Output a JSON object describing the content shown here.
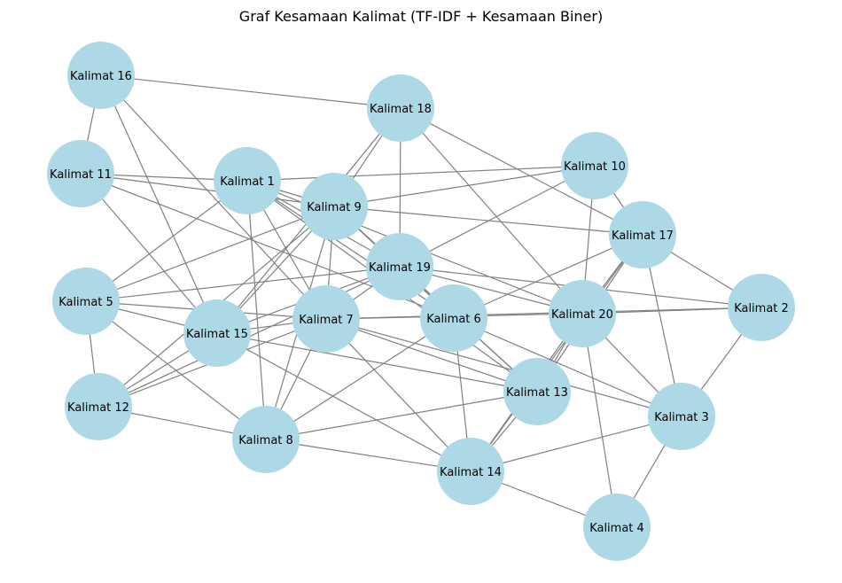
{
  "title": "Graf Kesamaan Kalimat (TF-IDF + Kesamaan Biner)",
  "colors": {
    "node": "#add8e6",
    "edge": "#808080",
    "text": "#000000",
    "background": "#ffffff"
  },
  "nodes": [
    {
      "id": "k1",
      "label": "Kalimat 1"
    },
    {
      "id": "k2",
      "label": "Kalimat 2"
    },
    {
      "id": "k3",
      "label": "Kalimat 3"
    },
    {
      "id": "k4",
      "label": "Kalimat 4"
    },
    {
      "id": "k5",
      "label": "Kalimat 5"
    },
    {
      "id": "k6",
      "label": "Kalimat 6"
    },
    {
      "id": "k7",
      "label": "Kalimat 7"
    },
    {
      "id": "k8",
      "label": "Kalimat 8"
    },
    {
      "id": "k9",
      "label": "Kalimat 9"
    },
    {
      "id": "k10",
      "label": "Kalimat 10"
    },
    {
      "id": "k11",
      "label": "Kalimat 11"
    },
    {
      "id": "k12",
      "label": "Kalimat 12"
    },
    {
      "id": "k13",
      "label": "Kalimat 13"
    },
    {
      "id": "k14",
      "label": "Kalimat 14"
    },
    {
      "id": "k15",
      "label": "Kalimat 15"
    },
    {
      "id": "k16",
      "label": "Kalimat 16"
    },
    {
      "id": "k17",
      "label": "Kalimat 17"
    },
    {
      "id": "k18",
      "label": "Kalimat 18"
    },
    {
      "id": "k19",
      "label": "Kalimat 19"
    },
    {
      "id": "k20",
      "label": "Kalimat 20"
    }
  ],
  "edges": [
    [
      "k16",
      "k18"
    ],
    [
      "k16",
      "k11"
    ],
    [
      "k16",
      "k15"
    ],
    [
      "k16",
      "k7"
    ],
    [
      "k18",
      "k9"
    ],
    [
      "k18",
      "k15"
    ],
    [
      "k18",
      "k19"
    ],
    [
      "k18",
      "k17"
    ],
    [
      "k18",
      "k20"
    ],
    [
      "k11",
      "k1"
    ],
    [
      "k11",
      "k9"
    ],
    [
      "k11",
      "k15"
    ],
    [
      "k11",
      "k6"
    ],
    [
      "k1",
      "k10"
    ],
    [
      "k1",
      "k9"
    ],
    [
      "k1",
      "k5"
    ],
    [
      "k1",
      "k7"
    ],
    [
      "k1",
      "k8"
    ],
    [
      "k1",
      "k19"
    ],
    [
      "k1",
      "k6"
    ],
    [
      "k1",
      "k20"
    ],
    [
      "k1",
      "k13"
    ],
    [
      "k10",
      "k9"
    ],
    [
      "k10",
      "k19"
    ],
    [
      "k10",
      "k17"
    ],
    [
      "k10",
      "k20"
    ],
    [
      "k9",
      "k17"
    ],
    [
      "k9",
      "k5"
    ],
    [
      "k9",
      "k15"
    ],
    [
      "k9",
      "k7"
    ],
    [
      "k9",
      "k12"
    ],
    [
      "k9",
      "k8"
    ],
    [
      "k9",
      "k6"
    ],
    [
      "k9",
      "k13"
    ],
    [
      "k17",
      "k2"
    ],
    [
      "k17",
      "k6"
    ],
    [
      "k17",
      "k20"
    ],
    [
      "k17",
      "k3"
    ],
    [
      "k17",
      "k14"
    ],
    [
      "k17",
      "k13"
    ],
    [
      "k19",
      "k5"
    ],
    [
      "k19",
      "k2"
    ],
    [
      "k19",
      "k7"
    ],
    [
      "k19",
      "k15"
    ],
    [
      "k19",
      "k20"
    ],
    [
      "k19",
      "k13"
    ],
    [
      "k19",
      "k12"
    ],
    [
      "k5",
      "k15"
    ],
    [
      "k5",
      "k7"
    ],
    [
      "k5",
      "k12"
    ],
    [
      "k5",
      "k8"
    ],
    [
      "k15",
      "k12"
    ],
    [
      "k15",
      "k7"
    ],
    [
      "k15",
      "k14"
    ],
    [
      "k15",
      "k13"
    ],
    [
      "k7",
      "k2"
    ],
    [
      "k7",
      "k20"
    ],
    [
      "k7",
      "k12"
    ],
    [
      "k7",
      "k8"
    ],
    [
      "k7",
      "k14"
    ],
    [
      "k7",
      "k13"
    ],
    [
      "k7",
      "k3"
    ],
    [
      "k6",
      "k8"
    ],
    [
      "k6",
      "k14"
    ],
    [
      "k6",
      "k3"
    ],
    [
      "k20",
      "k2"
    ],
    [
      "k20",
      "k14"
    ],
    [
      "k20",
      "k13"
    ],
    [
      "k20",
      "k3"
    ],
    [
      "k20",
      "k4"
    ],
    [
      "k2",
      "k3"
    ],
    [
      "k12",
      "k8"
    ],
    [
      "k13",
      "k8"
    ],
    [
      "k13",
      "k14"
    ],
    [
      "k8",
      "k14"
    ],
    [
      "k14",
      "k3"
    ],
    [
      "k14",
      "k4"
    ],
    [
      "k3",
      "k4"
    ]
  ]
}
